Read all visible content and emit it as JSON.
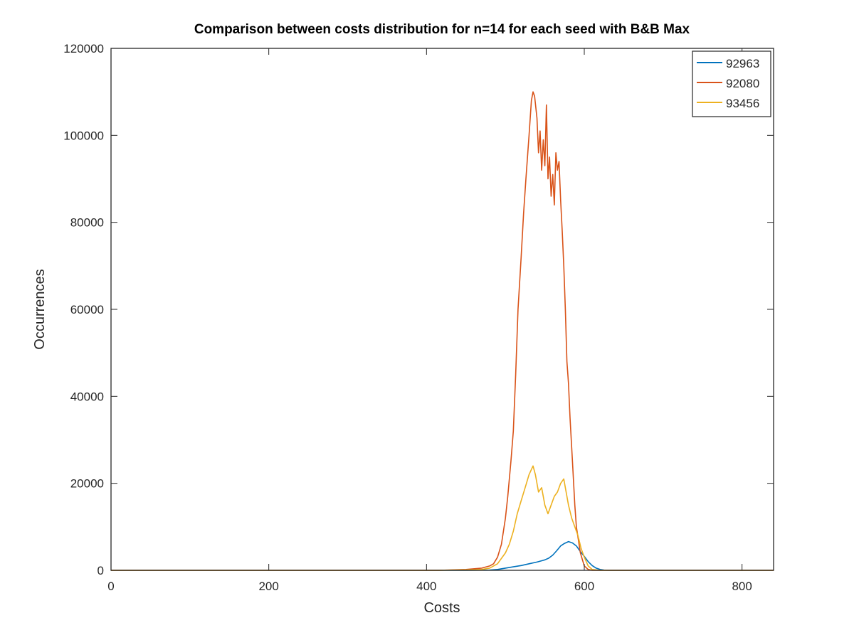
{
  "chart_data": {
    "type": "line",
    "title": "Comparison between costs distribution for n=14 for each seed with B&B Max",
    "xlabel": "Costs",
    "ylabel": "Occurrences",
    "xlim": [
      0,
      840
    ],
    "ylim": [
      0,
      120000
    ],
    "xticks": [
      0,
      200,
      400,
      600,
      800
    ],
    "yticks": [
      0,
      20000,
      40000,
      60000,
      80000,
      100000,
      120000
    ],
    "xtick_labels": [
      "0",
      "200",
      "400",
      "600",
      "800"
    ],
    "ytick_labels": [
      "0",
      "20000",
      "40000",
      "60000",
      "80000",
      "100000",
      "120000"
    ],
    "grid": false,
    "legend_position": "top-right",
    "series": [
      {
        "name": "92963",
        "color": "#0072BD",
        "x": [
          0,
          415,
          450,
          480,
          490,
          500,
          510,
          520,
          530,
          540,
          550,
          555,
          560,
          565,
          570,
          575,
          580,
          585,
          590,
          595,
          600,
          605,
          610,
          615,
          620,
          625,
          630,
          840
        ],
        "y": [
          0,
          0,
          0,
          50,
          200,
          500,
          800,
          1100,
          1500,
          1900,
          2400,
          2800,
          3500,
          4500,
          5600,
          6200,
          6600,
          6300,
          5600,
          4300,
          3200,
          2000,
          1100,
          500,
          200,
          50,
          0,
          0
        ]
      },
      {
        "name": "92080",
        "color": "#D95319",
        "x": [
          0,
          415,
          450,
          470,
          480,
          485,
          490,
          495,
          500,
          503,
          507,
          510,
          513,
          516,
          520,
          523,
          526,
          530,
          533,
          535,
          537,
          540,
          542,
          544,
          546,
          548,
          550,
          552,
          554,
          556,
          558,
          560,
          562,
          564,
          566,
          568,
          570,
          572,
          574,
          576,
          578,
          580,
          582,
          585,
          588,
          590,
          595,
          600,
          605,
          610,
          620,
          840
        ],
        "y": [
          0,
          0,
          200,
          500,
          1000,
          1500,
          3000,
          6000,
          12000,
          17000,
          25000,
          32000,
          45000,
          60000,
          72000,
          82000,
          90000,
          100000,
          108000,
          110000,
          109000,
          104000,
          96000,
          101000,
          92000,
          99000,
          93000,
          107000,
          90000,
          95000,
          86000,
          91000,
          84000,
          96000,
          92000,
          94000,
          85000,
          78000,
          70000,
          60000,
          48000,
          43000,
          35000,
          25000,
          15000,
          10000,
          4000,
          1000,
          200,
          0,
          0,
          0
        ]
      },
      {
        "name": "93456",
        "color": "#EDB120",
        "x": [
          0,
          415,
          450,
          470,
          480,
          490,
          500,
          505,
          510,
          515,
          520,
          525,
          530,
          535,
          538,
          542,
          546,
          550,
          554,
          558,
          562,
          566,
          570,
          574,
          576,
          578,
          580,
          584,
          588,
          592,
          596,
          600,
          605,
          610,
          620,
          840
        ],
        "y": [
          0,
          0,
          100,
          200,
          500,
          1500,
          4000,
          6000,
          9000,
          13000,
          16000,
          19000,
          22000,
          24000,
          22000,
          18000,
          19000,
          15000,
          13000,
          15000,
          17000,
          18000,
          20000,
          21000,
          19000,
          17000,
          15000,
          12000,
          10000,
          8000,
          5000,
          3000,
          1000,
          200,
          0,
          0
        ]
      }
    ]
  }
}
